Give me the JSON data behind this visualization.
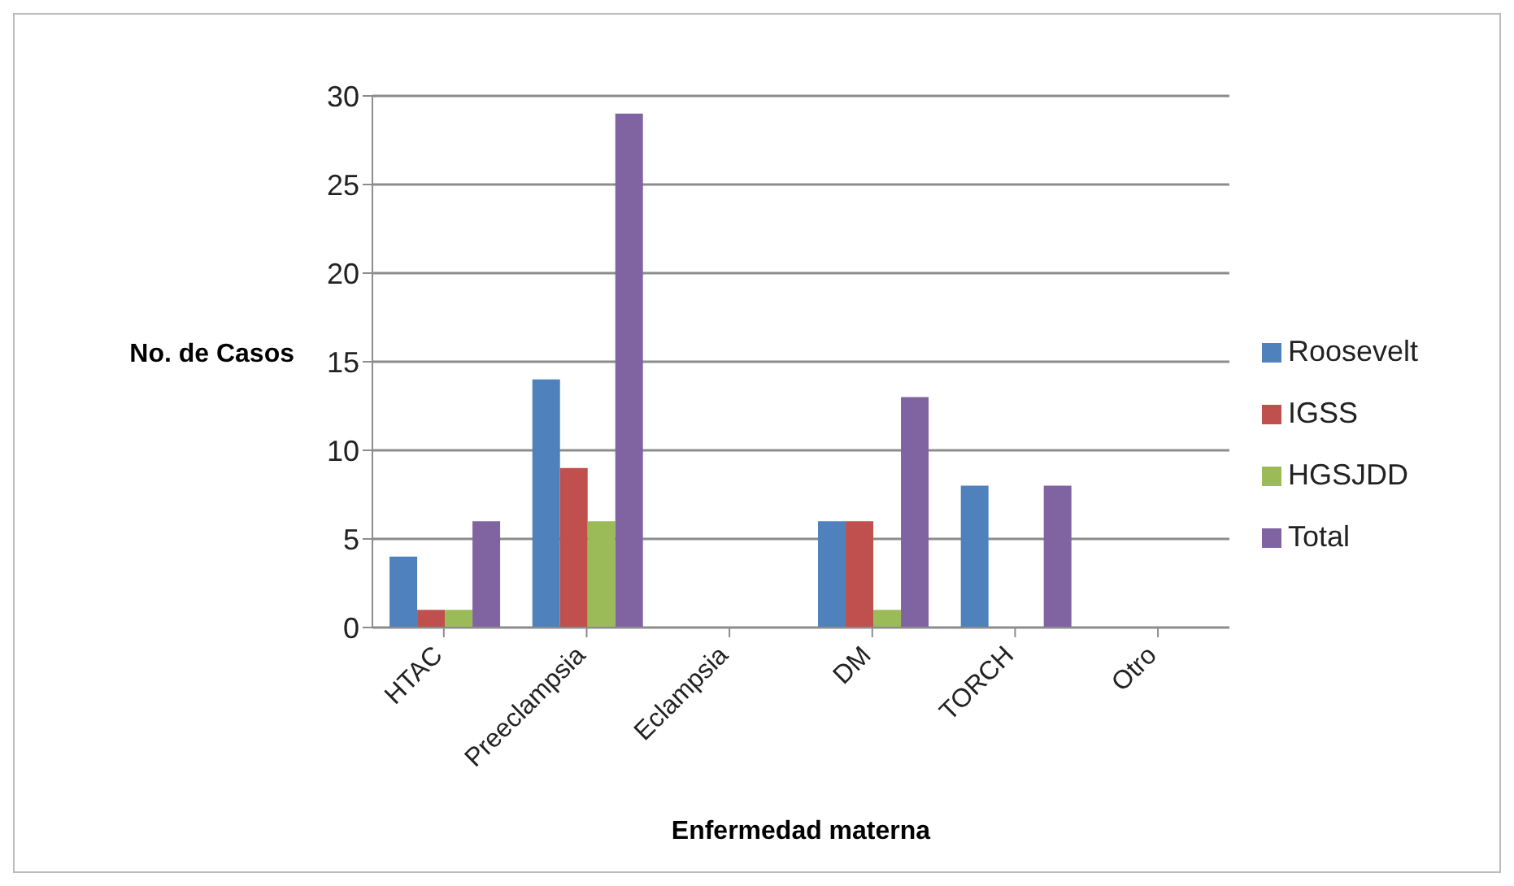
{
  "chart_data": {
    "type": "bar",
    "xlabel": "Enfermedad materna",
    "ylabel": "No. de Casos",
    "categories": [
      "HTAC",
      "Preeclampsia",
      "Eclampsia",
      "DM",
      "TORCH",
      "Otro"
    ],
    "series": [
      {
        "name": "Roosevelt",
        "color": "#4f81bd",
        "values": [
          4,
          14,
          0,
          6,
          8,
          0
        ]
      },
      {
        "name": "IGSS",
        "color": "#c0504d",
        "values": [
          1,
          9,
          0,
          6,
          0,
          0
        ]
      },
      {
        "name": "HGSJDD",
        "color": "#9bbb59",
        "values": [
          1,
          6,
          0,
          1,
          0,
          0
        ]
      },
      {
        "name": "Total",
        "color": "#8064a2",
        "values": [
          6,
          29,
          0,
          13,
          8,
          0
        ]
      }
    ],
    "ylim": [
      0,
      30
    ],
    "yticks": [
      0,
      5,
      10,
      15,
      20,
      25,
      30
    ],
    "grid": "y",
    "legend": "right"
  }
}
